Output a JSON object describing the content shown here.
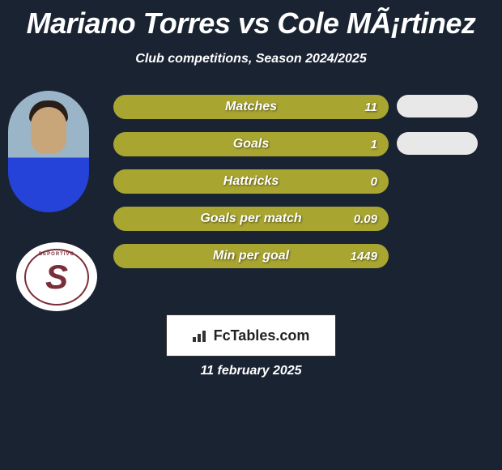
{
  "title": "Mariano Torres vs Cole MÃ¡rtinez",
  "subtitle": "Club competitions, Season 2024/2025",
  "colors": {
    "background": "#1a2332",
    "bar_fill": "#a8a530",
    "pill_right": "#e8e8e8",
    "text": "#ffffff",
    "club_accent": "#7a2e3a"
  },
  "stats": [
    {
      "label": "Matches",
      "value": "11",
      "show_right_pill": true
    },
    {
      "label": "Goals",
      "value": "1",
      "show_right_pill": true
    },
    {
      "label": "Hattricks",
      "value": "0",
      "show_right_pill": false
    },
    {
      "label": "Goals per match",
      "value": "0.09",
      "show_right_pill": false
    },
    {
      "label": "Min per goal",
      "value": "1449",
      "show_right_pill": false
    }
  ],
  "footer": {
    "brand": "FcTables.com",
    "date": "11 february 2025"
  },
  "club": {
    "letter": "S",
    "ring_text": "DEPORTIVO"
  }
}
